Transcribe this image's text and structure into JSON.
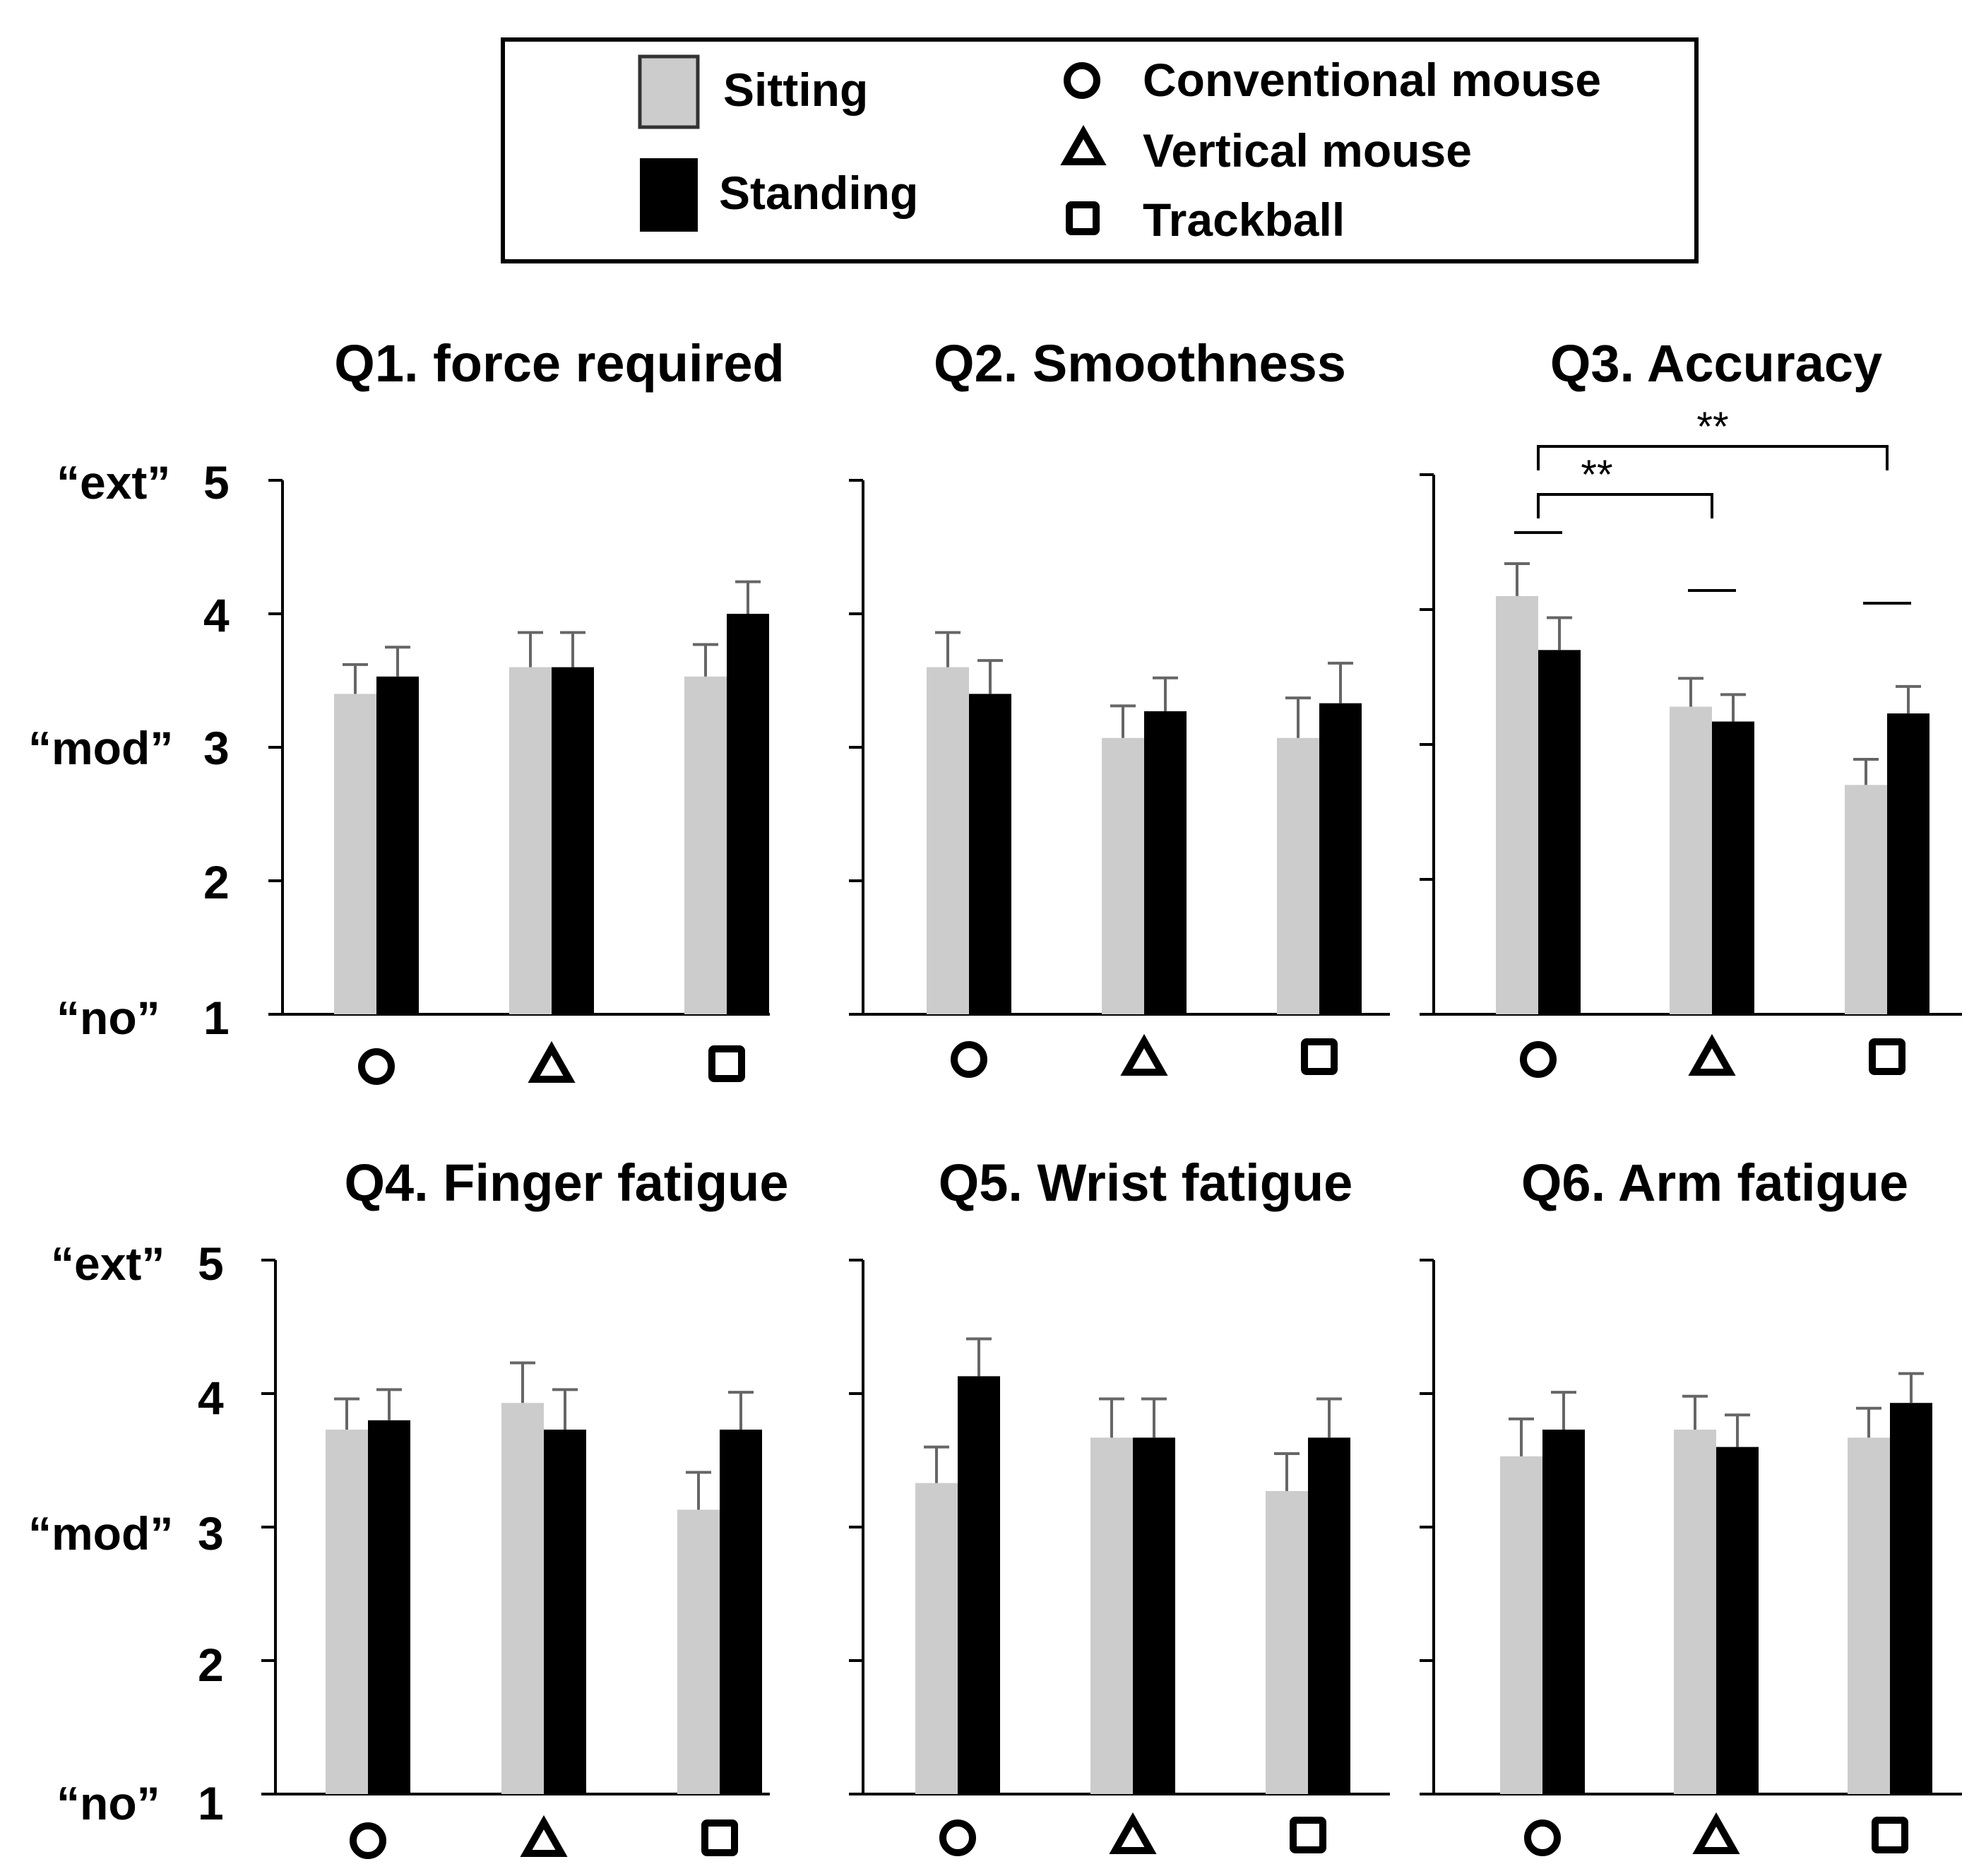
{
  "legend": {
    "conditions": [
      {
        "label": "Sitting",
        "color": "#cccccc"
      },
      {
        "label": "Standing",
        "color": "#000000"
      }
    ],
    "devices": [
      {
        "label": "Conventional mouse",
        "icon": "circle-icon"
      },
      {
        "label": "Vertical mouse",
        "icon": "triangle-icon"
      },
      {
        "label": "Trackball",
        "icon": "square-icon"
      }
    ]
  },
  "y_axis": {
    "ticks": [
      "1",
      "2",
      "3",
      "4",
      "5"
    ],
    "anchors": {
      "top": "“ext”",
      "mid": "“mod”",
      "bottom": "“no”"
    }
  },
  "chart_data": [
    {
      "type": "bar",
      "title": "Q1. force required",
      "categories": [
        "Conventional mouse",
        "Vertical mouse",
        "Trackball"
      ],
      "ylim": [
        1,
        5
      ],
      "series": [
        {
          "name": "Sitting",
          "values": [
            3.4,
            3.6,
            3.53
          ],
          "errors": [
            0.22,
            0.26,
            0.24
          ]
        },
        {
          "name": "Standing",
          "values": [
            3.53,
            3.6,
            4.0
          ],
          "errors": [
            0.22,
            0.26,
            0.24
          ]
        }
      ]
    },
    {
      "type": "bar",
      "title": "Q2. Smoothness",
      "categories": [
        "Conventional mouse",
        "Vertical mouse",
        "Trackball"
      ],
      "ylim": [
        1,
        5
      ],
      "series": [
        {
          "name": "Sitting",
          "values": [
            3.6,
            3.07,
            3.07
          ],
          "errors": [
            0.26,
            0.24,
            0.3
          ]
        },
        {
          "name": "Standing",
          "values": [
            3.4,
            3.27,
            3.33
          ],
          "errors": [
            0.25,
            0.25,
            0.3
          ]
        }
      ]
    },
    {
      "type": "bar",
      "title": "Q3. Accuracy",
      "categories": [
        "Conventional mouse",
        "Vertical mouse",
        "Trackball"
      ],
      "ylim": [
        1,
        5
      ],
      "series": [
        {
          "name": "Sitting",
          "values": [
            4.1,
            3.28,
            2.7
          ],
          "errors": [
            0.24,
            0.21,
            0.19
          ]
        },
        {
          "name": "Standing",
          "values": [
            3.7,
            3.17,
            3.23
          ],
          "errors": [
            0.24,
            0.2,
            0.2
          ]
        }
      ],
      "significance": [
        {
          "label": "**",
          "from": 0,
          "to": 1
        },
        {
          "label": "**",
          "from": 0,
          "to": 2
        }
      ]
    },
    {
      "type": "bar",
      "title": "Q4. Finger fatigue",
      "categories": [
        "Conventional mouse",
        "Vertical mouse",
        "Trackball"
      ],
      "ylim": [
        1,
        5
      ],
      "series": [
        {
          "name": "Sitting",
          "values": [
            3.73,
            3.93,
            3.13
          ],
          "errors": [
            0.23,
            0.3,
            0.28
          ]
        },
        {
          "name": "Standing",
          "values": [
            3.8,
            3.73,
            3.73
          ],
          "errors": [
            0.23,
            0.3,
            0.28
          ]
        }
      ]
    },
    {
      "type": "bar",
      "title": "Q5. Wrist fatigue",
      "categories": [
        "Conventional mouse",
        "Vertical mouse",
        "Trackball"
      ],
      "ylim": [
        1,
        5
      ],
      "series": [
        {
          "name": "Sitting",
          "values": [
            3.33,
            3.67,
            3.27
          ],
          "errors": [
            0.27,
            0.29,
            0.28
          ]
        },
        {
          "name": "Standing",
          "values": [
            4.13,
            3.67,
            3.67
          ],
          "errors": [
            0.28,
            0.29,
            0.29
          ]
        }
      ]
    },
    {
      "type": "bar",
      "title": "Q6. Arm fatigue",
      "categories": [
        "Conventional mouse",
        "Vertical mouse",
        "Trackball"
      ],
      "ylim": [
        1,
        5
      ],
      "series": [
        {
          "name": "Sitting",
          "values": [
            3.53,
            3.73,
            3.67
          ],
          "errors": [
            0.28,
            0.25,
            0.22
          ]
        },
        {
          "name": "Standing",
          "values": [
            3.73,
            3.6,
            3.93
          ],
          "errors": [
            0.28,
            0.24,
            0.22
          ]
        }
      ]
    }
  ]
}
